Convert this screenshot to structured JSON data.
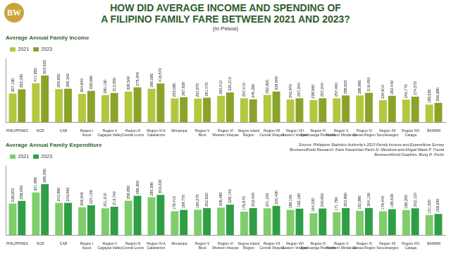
{
  "header": {
    "logo": "BW",
    "title": [
      "HOW DID AVERAGE INCOME AND SPENDING OF",
      "A FILIPINO FAMILY FARE BETWEEN 2021 AND 2023?"
    ],
    "unit": "(In Pesos)"
  },
  "source": [
    "Source: Philippine Statistics Authority's 2023 Family Income and Expenditure Survey",
    "BusinessWorld Research: Karis Kasarinlan Paolo D. Mendoza and Abigail Marie P. Yraola",
    "BusinessWorld Graphics: Bong R. Fortin"
  ],
  "chart_data": [
    {
      "type": "bar",
      "title": "Average Annual Family Income",
      "categories": [
        "PHILIPPINES",
        "NCR",
        "CAR",
        "Region I\nIlocos",
        "Region II\nCagayan Valley",
        "Region III\nCentral Luzon",
        "Region IV-A\nCalabarzon",
        "Mimaropa",
        "Region V\nBicol",
        "Region VI\nWestern Visayas",
        "Negros Island\nRegion",
        "Region VII\nCentral Visayas",
        "Region VIII\nEastern Visayas",
        "Region IX\nZamboanga Peninsula",
        "Region X\nNorthern Mindanao",
        "Region XI\nDavao Region",
        "Region XII\nSoccsksargen",
        "Region XIII\nCaraga",
        "BARMM"
      ],
      "series": [
        {
          "name": "2021",
          "color": "#b3c83f",
          "values": [
            307190,
            417850,
            355650,
            304640,
            290130,
            328540,
            360080,
            255080,
            252870,
            282410,
            257410,
            292600,
            242970,
            238560,
            257460,
            286880,
            234910,
            240770,
            188530
          ],
          "value_labels": [
            "307,190",
            "417,850",
            "355,650",
            "304,640",
            "290,130",
            "328,540",
            "360,080",
            "255,080",
            "252,870",
            "282,410",
            "257,410",
            "292,600",
            "242,970",
            "238,560",
            "257,460",
            "286,880",
            "234,910",
            "240,770",
            "188,530"
          ]
        },
        {
          "name": "2023",
          "color": "#8aa329",
          "values": [
            353230,
            502530,
            359340,
            336690,
            313550,
            375340,
            416570,
            267830,
            261470,
            320210,
            245290,
            328940,
            257340,
            257240,
            286500,
            316450,
            282440,
            274570,
            206880
          ],
          "value_labels": [
            "353,230",
            "502,530",
            "359,340",
            "336,690",
            "313,550",
            "375,340",
            "416,570",
            "267,830",
            "261,470",
            "320,210",
            "245,290",
            "328,940",
            "257,340",
            "257,240",
            "286,500",
            "316,450",
            "282,440",
            "274,570",
            "206,880"
          ]
        }
      ],
      "ylim": [
        0,
        680000
      ],
      "grid": false,
      "legend": "top-left",
      "data_labels": true,
      "tick_labels": "x"
    },
    {
      "type": "bar",
      "title": "Average Annual Family Expenditure",
      "categories": [
        "PHILIPPINES",
        "NCR",
        "CAR",
        "Region I\nIlocos",
        "Region II\nCagayan Valley",
        "Region III\nCentral Luzon",
        "Region IV-A\nCalabarzon",
        "Mimaropa",
        "Region V\nBicol",
        "Region VI\nWestern Visayas",
        "Negros Island\nRegion",
        "Region VII\nCentral Visayas",
        "Region VIII\nEastern Visayas",
        "Region IX\nZamboanga Peninsula",
        "Region X\nNorthern Mindanao",
        "Region XI\nDavao Region",
        "Region XII\nSoccsksargen",
        "Region XIII\nCaraga",
        "BARMM"
      ],
      "series": [
        {
          "name": "2021",
          "color": "#7fcd6b",
          "values": [
            238000,
            321990,
            242990,
            209540,
            201310,
            258650,
            285580,
            178410,
            190270,
            206480,
            175670,
            201220,
            189100,
            164230,
            171760,
            182890,
            179440,
            188200,
            151320
          ],
          "value_labels": [
            "238,000",
            "321,990",
            "242,990",
            "209,540",
            "201,310",
            "258,650",
            "285,580",
            "178,410",
            "190,270",
            "206,480",
            "175,670",
            "201,220",
            "189,100",
            "164,230",
            "171,760",
            "182,890",
            "179,440",
            "188,200",
            "151,320"
          ]
        },
        {
          "name": "2023",
          "color": "#2f9e45",
          "values": [
            258050,
            385050,
            243560,
            224100,
            213740,
            296300,
            303230,
            189770,
            202620,
            229140,
            203400,
            220430,
            199180,
            200650,
            202990,
            204130,
            195530,
            202120,
            158930
          ],
          "value_labels": [
            "258,050",
            "385,050",
            "243,560",
            "224,100",
            "213,740",
            "296,300",
            "303,230",
            "189,770",
            "202,620",
            "229,140",
            "203,400",
            "220,430",
            "199,180",
            "200,650",
            "202,990",
            "204,130",
            "195,530",
            "202,120",
            "158,930"
          ]
        }
      ],
      "ylim": [
        0,
        520000
      ],
      "grid": false,
      "legend": "top-left",
      "data_labels": true,
      "tick_labels": "x"
    }
  ]
}
